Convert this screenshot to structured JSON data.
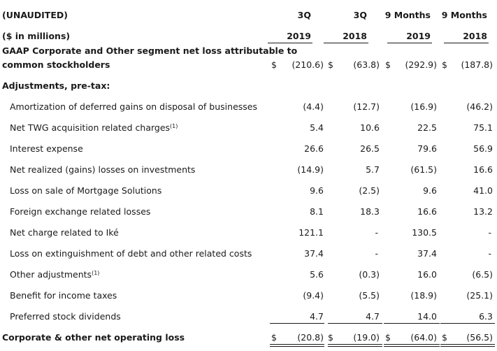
{
  "header": {
    "label": "(UNAUDITED)",
    "units": "($ in millions)",
    "columns": [
      {
        "period": "3Q",
        "year": "2019"
      },
      {
        "period": "3Q",
        "year": "2018"
      },
      {
        "period": "9 Months",
        "year": "2019"
      },
      {
        "period": "9 Months",
        "year": "2018"
      }
    ]
  },
  "gaap_row": {
    "label_line1": "GAAP Corporate and Other segment net loss attributable to",
    "label_line2": "common stockholders",
    "currency": "$",
    "values": [
      "(210.6)",
      "(63.8)",
      "(292.9)",
      "(187.8)"
    ]
  },
  "adjustments_heading": "Adjustments, pre-tax:",
  "adjustments": [
    {
      "label": "Amortization of deferred gains on disposal of businesses",
      "note": "",
      "values": [
        "(4.4)",
        "(12.7)",
        "(16.9)",
        "(46.2)"
      ]
    },
    {
      "label": "Net TWG acquisition related charges",
      "note": "(1)",
      "values": [
        "5.4",
        "10.6",
        "22.5",
        "75.1"
      ]
    },
    {
      "label": "Interest expense",
      "note": "",
      "values": [
        "26.6",
        "26.5",
        "79.6",
        "56.9"
      ]
    },
    {
      "label": "Net realized (gains) losses on investments",
      "note": "",
      "values": [
        "(14.9)",
        "5.7",
        "(61.5)",
        "16.6"
      ]
    },
    {
      "label": "Loss on sale of Mortgage Solutions",
      "note": "",
      "values": [
        "9.6",
        "(2.5)",
        "9.6",
        "41.0"
      ]
    },
    {
      "label": "Foreign exchange related losses",
      "note": "",
      "values": [
        "8.1",
        "18.3",
        "16.6",
        "13.2"
      ]
    },
    {
      "label": "Net charge related to Iké",
      "note": "",
      "values": [
        "121.1",
        "-",
        "130.5",
        "-"
      ]
    },
    {
      "label": "Loss on extinguishment of debt and other related costs",
      "note": "",
      "values": [
        "37.4",
        "-",
        "37.4",
        "-"
      ]
    },
    {
      "label": "Other adjustments",
      "note": "(1)",
      "values": [
        "5.6",
        "(0.3)",
        "16.0",
        "(6.5)"
      ]
    },
    {
      "label": "Benefit for income taxes",
      "note": "",
      "values": [
        "(9.4)",
        "(5.5)",
        "(18.9)",
        "(25.1)"
      ]
    },
    {
      "label": "Preferred stock dividends",
      "note": "",
      "values": [
        "4.7",
        "4.7",
        "14.0",
        "6.3"
      ]
    }
  ],
  "total_row": {
    "label": "Corporate & other net operating loss",
    "currency": "$",
    "values": [
      "(20.8)",
      "(19.0)",
      "(64.0)",
      "(56.5)"
    ]
  }
}
